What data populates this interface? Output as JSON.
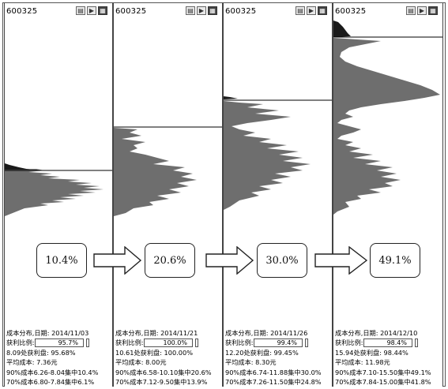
{
  "panels": [
    {
      "code": "600325",
      "date_line": "成本分布,日期: 2014/11/03",
      "profit_label": "获利比例:",
      "profit_value": "95.7%",
      "profit_fill": 0.957,
      "line3": "8.09处获利盘: 95.68%",
      "line4": "平均成本: 7.36元",
      "line5": "90%成本6.26-8.04集中10.4%",
      "line6": "70%成本6.80-7.84集中6.1%"
    },
    {
      "code": "600325",
      "date_line": "成本分布,日期: 2014/11/21",
      "profit_label": "获利比例:",
      "profit_value": "100.0%",
      "profit_fill": 1.0,
      "line3": "10.61处获利盘: 100.00%",
      "line4": "平均成本: 8.00元",
      "line5": "90%成本6.58-10.10集中20.6%",
      "line6": "70%成本7.12-9.50集中13.9%"
    },
    {
      "code": "600325",
      "date_line": "成本分布,日期: 2014/11/26",
      "profit_label": "获利比例:",
      "profit_value": "99.4%",
      "profit_fill": 0.994,
      "line3": "12.20处获利盘: 99.45%",
      "line4": "平均成本: 8.30元",
      "line5": "90%成本6.74-11.88集中30.0%",
      "line6": "70%成本7.26-11.50集中24.8%"
    },
    {
      "code": "600325",
      "date_line": "成本分布,日期: 2014/12/10",
      "profit_label": "获利比例:",
      "profit_value": "98.4%",
      "profit_fill": 0.984,
      "line3": "15.94处获利盘: 98.44%",
      "line4": "平均成本: 11.98元",
      "line5": "90%成本7.10-15.50集中49.1%",
      "line6": "70%成本7.84-15.00集中41.8%"
    }
  ],
  "concentration_boxes": [
    "10.4%",
    "20.6%",
    "30.0%",
    "49.1%"
  ],
  "icons": [
    "chip-distribution-icon",
    "play-icon",
    "settings-icon"
  ],
  "colors": {
    "histogram_fill": "#6e6e6e",
    "dark_wedge": "#1a1a1a",
    "border": "#444444"
  }
}
